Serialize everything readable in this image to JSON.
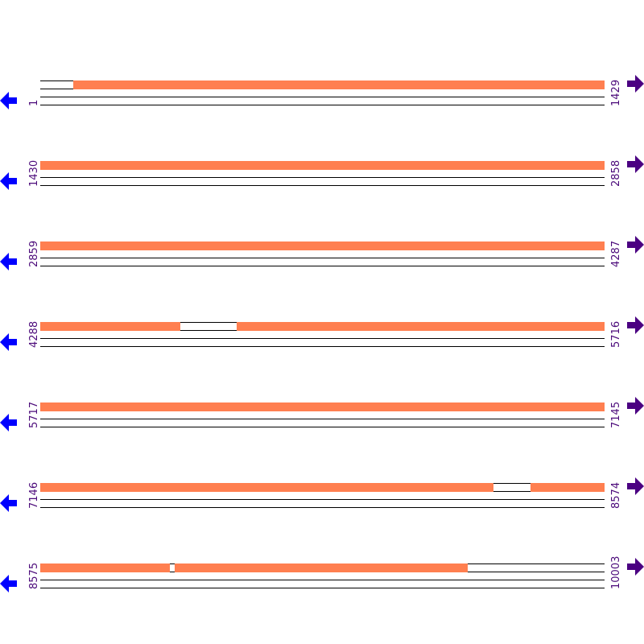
{
  "colors": {
    "covered": "#ff7f50",
    "gap": "#ffffff",
    "left_arrow": "#0000ff",
    "right_arrow": "#4b0082",
    "label": "#4b0a7a"
  },
  "icons": {
    "left": "arrow-left-icon",
    "right": "arrow-right-icon"
  },
  "rows": [
    {
      "start": "1",
      "end": "1429",
      "covered": [
        [
          84,
          1429
        ]
      ]
    },
    {
      "start": "1430",
      "end": "2858",
      "covered": [
        [
          1430,
          2858
        ]
      ]
    },
    {
      "start": "2859",
      "end": "4287",
      "covered": [
        [
          2859,
          4287
        ]
      ]
    },
    {
      "start": "4288",
      "end": "5716",
      "covered": [
        [
          4288,
          4643
        ],
        [
          4785,
          5716
        ]
      ]
    },
    {
      "start": "5717",
      "end": "7145",
      "covered": [
        [
          5717,
          7145
        ]
      ]
    },
    {
      "start": "7146",
      "end": "8574",
      "covered": [
        [
          7146,
          8294
        ],
        [
          8387,
          8574
        ]
      ]
    },
    {
      "start": "8575",
      "end": "10003",
      "covered": [
        [
          8575,
          8903
        ],
        [
          8915,
          9657
        ]
      ]
    }
  ]
}
